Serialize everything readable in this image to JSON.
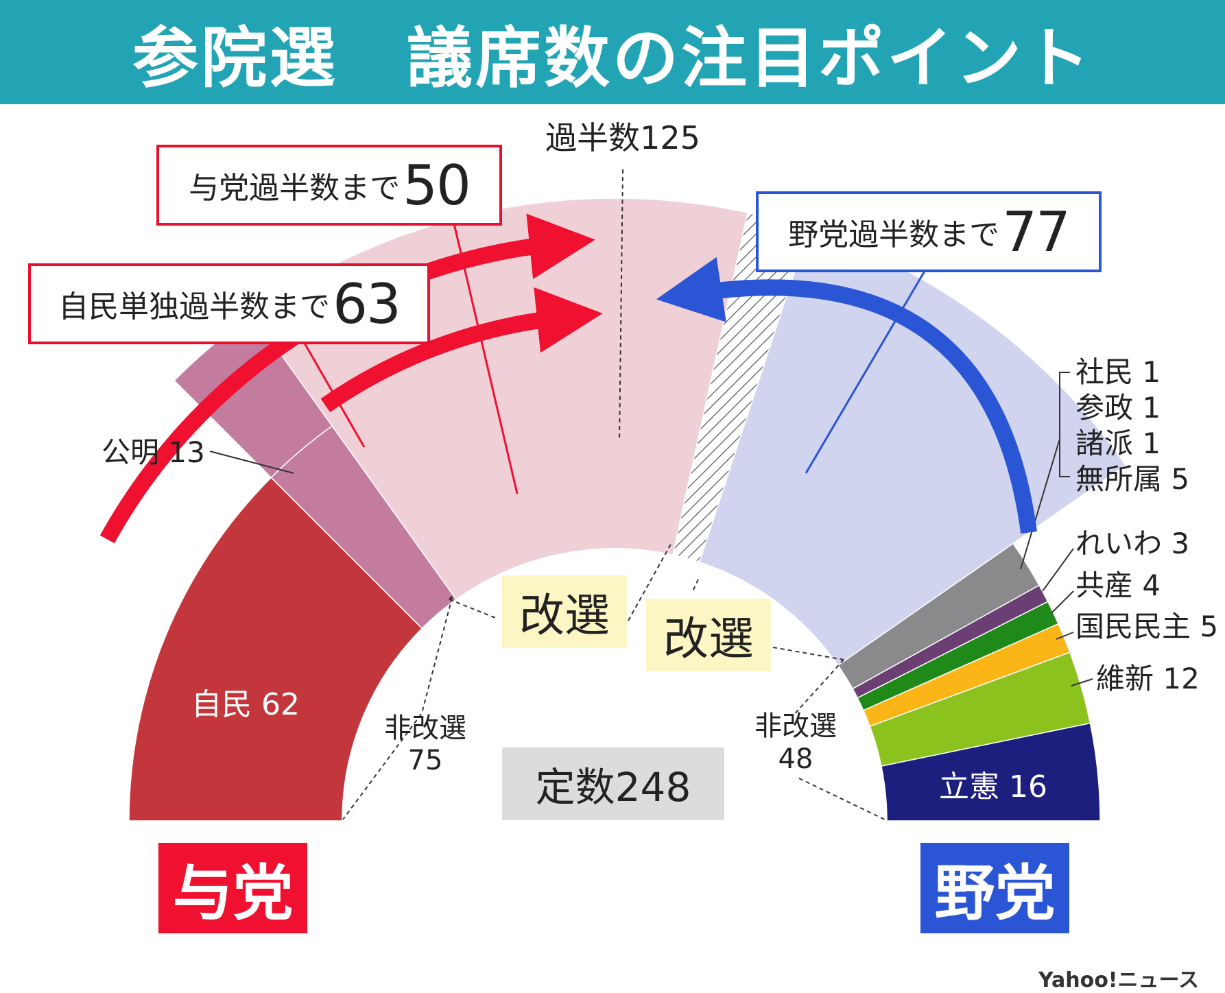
{
  "title": "参院選　議席数の注目ポイント",
  "total_label": "定数248",
  "majority_label": "過半数125",
  "callouts": {
    "ruling": {
      "label": "与党過半数まで",
      "value": "50"
    },
    "ldp": {
      "label": "自民単独過半数まで",
      "value": "63"
    },
    "opposition": {
      "label": "野党過半数まで",
      "value": "77"
    }
  },
  "kaisen_label": "改選",
  "non_up": {
    "ruling": {
      "label": "非改選",
      "value": "75"
    },
    "opposition": {
      "label": "非改選",
      "value": "48"
    }
  },
  "blocs": {
    "ruling": "与党",
    "opposition": "野党"
  },
  "party_labels": {
    "ldp": "自民 62",
    "komeito": "公明 13",
    "cdp": "立憲 16",
    "ishin": "維新 12",
    "dpfp": "国民民主 5",
    "jcp": "共産 4",
    "reiwa": "れいわ 3",
    "sdp": "社民 1",
    "sanseito": "参政 1",
    "shoha": "諸派 1",
    "independent": "無所属 5"
  },
  "credit": "Yahoo!ニュース",
  "chart_data": {
    "type": "semicircle-seat-diagram",
    "total_seats": 248,
    "majority": 125,
    "non_up_seats": [
      {
        "party": "自民",
        "seats": 62,
        "bloc": "与党"
      },
      {
        "party": "公明",
        "seats": 13,
        "bloc": "与党"
      },
      {
        "party": "立憲",
        "seats": 16,
        "bloc": "野党"
      },
      {
        "party": "維新",
        "seats": 12,
        "bloc": "野党"
      },
      {
        "party": "国民民主",
        "seats": 5,
        "bloc": "野党"
      },
      {
        "party": "共産",
        "seats": 4,
        "bloc": "野党"
      },
      {
        "party": "れいわ",
        "seats": 3,
        "bloc": "野党"
      },
      {
        "party": "社民",
        "seats": 1,
        "bloc": "野党"
      },
      {
        "party": "参政",
        "seats": 1,
        "bloc": "野党"
      },
      {
        "party": "諸派",
        "seats": 1,
        "bloc": "野党"
      },
      {
        "party": "無所属",
        "seats": 5,
        "bloc": "野党"
      }
    ],
    "non_up_totals": {
      "与党": 75,
      "野党": 48
    },
    "seats_needed": {
      "与党過半数まで": 50,
      "自民単独過半数まで": 63,
      "野党過半数まで": 77
    },
    "colors": {
      "ldp": "#c3363c",
      "komeito": "#c47c9e",
      "cdp": "#1d1f7e",
      "ishin": "#8cc21e",
      "dpfp": "#fbb516",
      "jcp": "#1f8a1a",
      "reiwa": "#6b3f73",
      "others": "#8a8a8c",
      "ruling_up": "#efd0d7",
      "opposition_up": "#d0d4ee",
      "ruling_accent": "#f0102f",
      "opposition_accent": "#2a55d4",
      "header": "#22a4b5"
    }
  }
}
